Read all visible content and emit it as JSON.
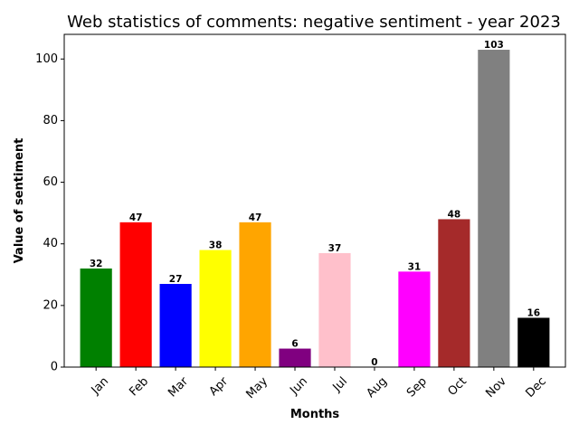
{
  "chart_data": {
    "type": "bar",
    "title": "Web statistics of comments: negative sentiment - year 2023",
    "xlabel": "Months",
    "ylabel": "Value of sentiment",
    "categories": [
      "Jan",
      "Feb",
      "Mar",
      "Apr",
      "May",
      "Jun",
      "Jul",
      "Aug",
      "Sep",
      "Oct",
      "Nov",
      "Dec"
    ],
    "values": [
      32,
      47,
      27,
      38,
      47,
      6,
      37,
      0,
      31,
      48,
      103,
      16
    ],
    "colors": [
      "#008000",
      "#ff0000",
      "#0000ff",
      "#ffff00",
      "#ffa500",
      "#800080",
      "#ffc0cb",
      "#ffffff",
      "#ff00ff",
      "#a52a2a",
      "#808080",
      "#000000"
    ],
    "ylim": [
      0,
      108
    ],
    "yticks": [
      0,
      20,
      40,
      60,
      80,
      100
    ],
    "grid": false,
    "legend": false
  }
}
